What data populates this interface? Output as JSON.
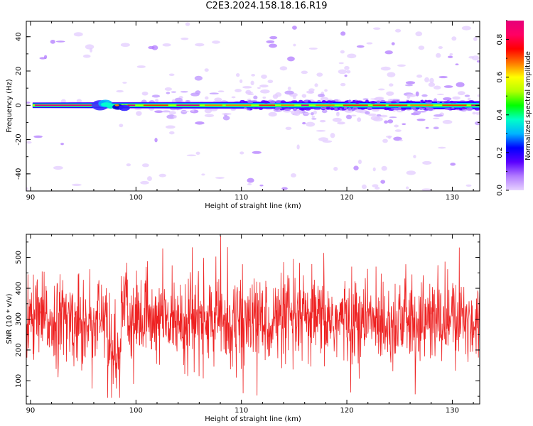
{
  "figure": {
    "title": "C2E3.2024.158.18.16.R19"
  },
  "chart_data": [
    {
      "type": "heatmap",
      "xlabel": "Height of straight line (km)",
      "ylabel": "Frequency (Hz)",
      "xlim": [
        89.6,
        132.6
      ],
      "ylim": [
        -50,
        49
      ],
      "xticks": [
        90,
        100,
        110,
        120,
        130
      ],
      "yticks": [
        -40,
        -20,
        0,
        20,
        40
      ],
      "colorbar": {
        "label": "Normalized spectral amplitude",
        "range": [
          0.0,
          0.9
        ],
        "ticks": [
          0.0,
          0.2,
          0.4,
          0.6,
          0.8
        ]
      },
      "ridge_frequency_hz": 0,
      "hotspot_heights_km": [
        96.5,
        98.0
      ],
      "colors": [
        "#ffffff",
        "#e7d2ff",
        "#b27bff",
        "#5a00ff",
        "#0000ff",
        "#00b4ff",
        "#00ffc8",
        "#00ff00",
        "#b4ff00",
        "#ffff00",
        "#ff7800",
        "#ff0000",
        "#ff0064",
        "#e6007a"
      ]
    },
    {
      "type": "line",
      "xlabel": "Height of straight line (km)",
      "ylabel": "SNR (10 * v/v)",
      "xlim": [
        89.6,
        132.6
      ],
      "ylim": [
        25,
        575
      ],
      "xticks": [
        90,
        100,
        110,
        120,
        130
      ],
      "yticks": [
        100,
        200,
        300,
        400,
        500
      ],
      "mean": 295,
      "range_observed": [
        45,
        570
      ],
      "line_color": "#ee2222"
    }
  ]
}
